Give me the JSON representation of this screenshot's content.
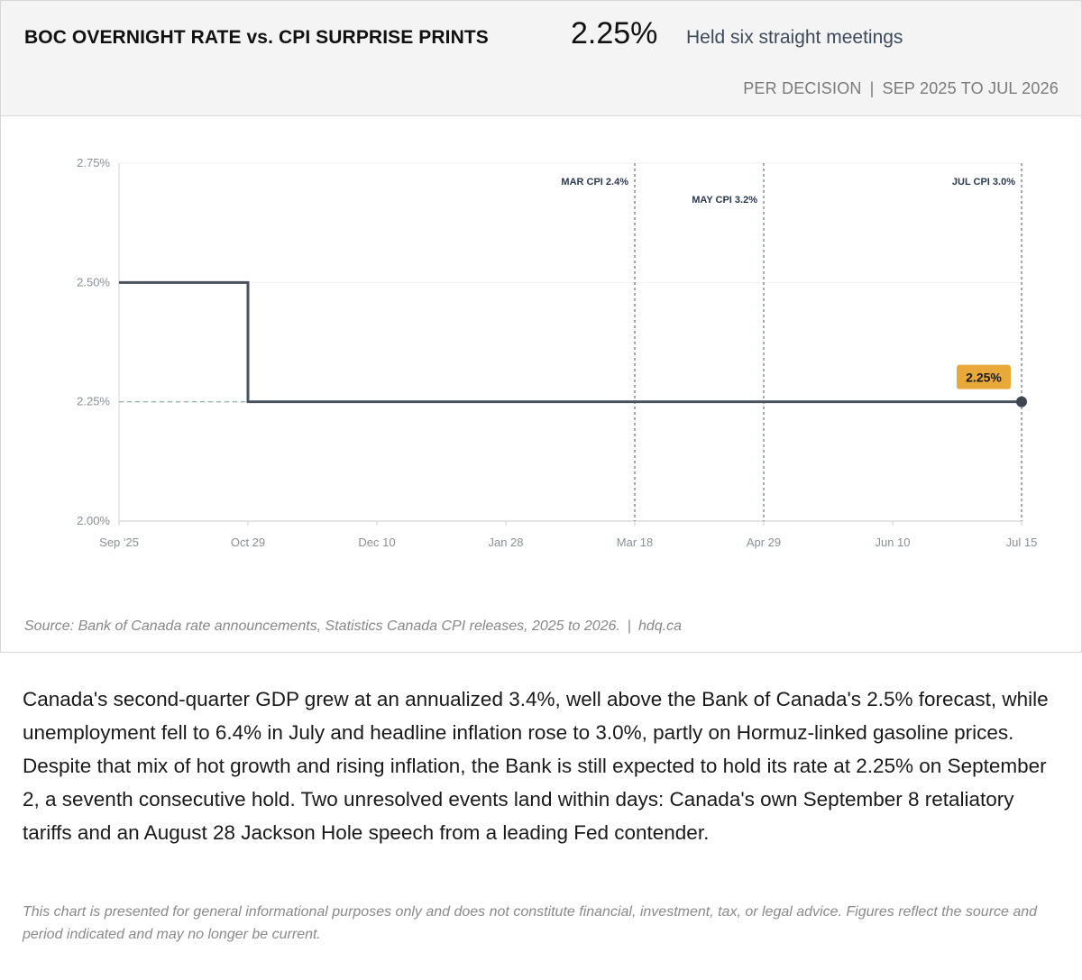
{
  "header": {
    "title": "BOC OVERNIGHT RATE vs. CPI SURPRISE PRINTS",
    "current_value": "2.25%",
    "subtitle": "Held six straight meetings",
    "frequency": "PER DECISION",
    "period_separator": "|",
    "range": "SEP 2025 TO JUL 2026"
  },
  "chart_data": {
    "type": "line",
    "step": true,
    "x_tick_labels": [
      "Sep '25",
      "Oct 29",
      "Dec 10",
      "Jan 28",
      "Mar 18",
      "Apr 29",
      "Jun 10",
      "Jul 15"
    ],
    "y_tick_labels": [
      "2.00%",
      "2.25%",
      "2.50%",
      "2.75%"
    ],
    "y_ticks": [
      2.0,
      2.25,
      2.5,
      2.75
    ],
    "ylim": [
      2.0,
      2.75
    ],
    "series": [
      {
        "x": [
          "Sep '25",
          "Oct 29",
          "Dec 10",
          "Jan 28",
          "Mar 18",
          "Apr 29",
          "Jun 10",
          "Jul 15"
        ],
        "values": [
          2.5,
          2.25,
          2.25,
          2.25,
          2.25,
          2.25,
          2.25,
          2.25
        ]
      }
    ],
    "reference_line": 2.25,
    "events": [
      {
        "x": "Mar 18",
        "label": "MAR CPI 2.4%"
      },
      {
        "x": "Apr 29",
        "label": "MAY CPI 3.2%"
      },
      {
        "x": "Jul 15",
        "label": "JUL CPI 3.0%"
      }
    ],
    "end_label": "2.25%",
    "grid": true,
    "colors": {
      "line": "#4a5260",
      "event_line": "#7d8797",
      "reference": "#7fae96",
      "badge": "#e8a83a",
      "grid": "#eeeeee"
    }
  },
  "footer": {
    "source": "Source: Bank of Canada rate announcements, Statistics Canada CPI releases, 2025 to 2026.",
    "separator": "|",
    "site": "hdq.ca"
  },
  "commentary": "Canada's second-quarter GDP grew at an annualized 3.4%, well above the Bank of Canada's 2.5% forecast, while unemployment fell to 6.4% in July and headline inflation rose to 3.0%, partly on Hormuz-linked gasoline prices. Despite that mix of hot growth and rising inflation, the Bank is still expected to hold its rate at 2.25% on September 2, a seventh consecutive hold. Two unresolved events land within days: Canada's own September 8 retaliatory tariffs and an August 28 Jackson Hole speech from a leading Fed contender.",
  "disclaimer": "This chart is presented for general informational purposes only and does not constitute financial, investment, tax, or legal advice. Figures reflect the source and period indicated and may no longer be current."
}
